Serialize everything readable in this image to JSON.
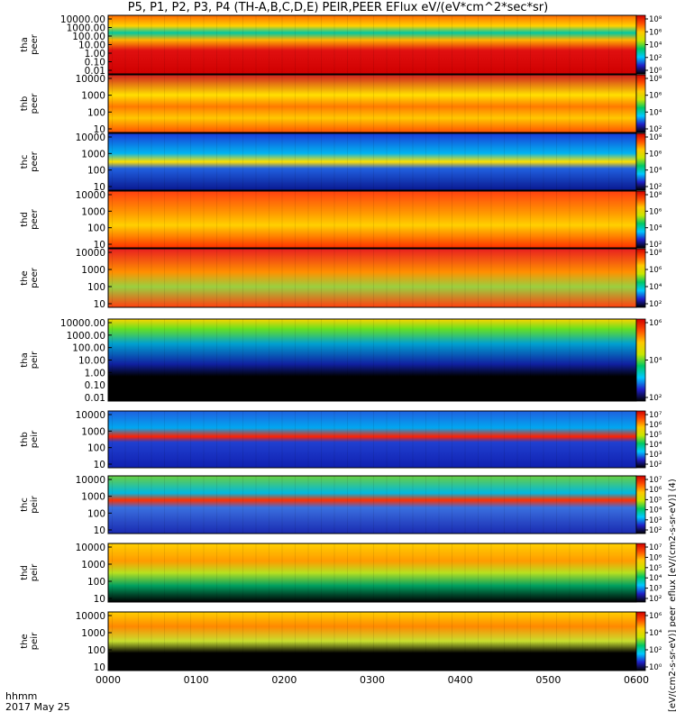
{
  "title": "P5, P1, P2, P3, P4 (TH-A,B,C,D,E) PEIR,PEER EFlux eV/(eV*cm^2*sec*sr)",
  "colorbar_units": "[eV/(cm2-s-sr-eV)] peer_eflux [eV/(cm2-s-sr-eV)] (4)",
  "footer": {
    "label1": "hhmm",
    "label2": "2017 May 25"
  },
  "colors": {
    "spectrum": [
      "#000000",
      "#2020c8",
      "#00c8ff",
      "#00c864",
      "#c8e600",
      "#ffc800",
      "#ff5000",
      "#d20000"
    ]
  },
  "chart_data": {
    "type": "heatmap",
    "x_ticks": [
      "0000",
      "0100",
      "0200",
      "0300",
      "0400",
      "0500",
      "0600"
    ],
    "panels": [
      {
        "ylabel": [
          "tha",
          "peer"
        ],
        "y_ticks": [
          "10000.00",
          "1000.00",
          "100.00",
          "10.00",
          "1.00",
          "0.10",
          "0.01"
        ],
        "colorbar": [
          "10^8",
          "10^6",
          "10^4",
          "10^2",
          "10^0"
        ]
      },
      {
        "ylabel": [
          "thb",
          "peer"
        ],
        "y_ticks": [
          "10000",
          "1000",
          "100",
          "10"
        ],
        "colorbar": [
          "10^8",
          "10^6",
          "10^4",
          "10^2"
        ]
      },
      {
        "ylabel": [
          "thc",
          "peer"
        ],
        "y_ticks": [
          "10000",
          "1000",
          "100",
          "10"
        ],
        "colorbar": [
          "10^8",
          "10^6",
          "10^4",
          "10^2"
        ]
      },
      {
        "ylabel": [
          "thd",
          "peer"
        ],
        "y_ticks": [
          "10000",
          "1000",
          "100",
          "10"
        ],
        "colorbar": [
          "10^8",
          "10^6",
          "10^4",
          "10^2"
        ]
      },
      {
        "ylabel": [
          "the",
          "peer"
        ],
        "y_ticks": [
          "10000",
          "1000",
          "100",
          "10"
        ],
        "colorbar": [
          "10^8",
          "10^6",
          "10^4",
          "10^2"
        ]
      },
      {
        "ylabel": [
          "tha",
          "peir"
        ],
        "y_ticks": [
          "10000.00",
          "1000.00",
          "100.00",
          "10.00",
          "1.00",
          "0.10",
          "0.01"
        ],
        "colorbar": [
          "10^6",
          "10^4",
          "10^2"
        ]
      },
      {
        "ylabel": [
          "thb",
          "peir"
        ],
        "y_ticks": [
          "10000",
          "1000",
          "100",
          "10"
        ],
        "colorbar": [
          "10^7",
          "10^6",
          "10^5",
          "10^4",
          "10^3",
          "10^2"
        ]
      },
      {
        "ylabel": [
          "thc",
          "peir"
        ],
        "y_ticks": [
          "10000",
          "1000",
          "100",
          "10"
        ],
        "colorbar": [
          "10^7",
          "10^6",
          "10^5",
          "10^4",
          "10^3",
          "10^2"
        ]
      },
      {
        "ylabel": [
          "thd",
          "peir"
        ],
        "y_ticks": [
          "10000",
          "1000",
          "100",
          "10"
        ],
        "colorbar": [
          "10^7",
          "10^6",
          "10^5",
          "10^4",
          "10^3",
          "10^2"
        ]
      },
      {
        "ylabel": [
          "the",
          "peir"
        ],
        "y_ticks": [
          "10000",
          "1000",
          "100",
          "10"
        ],
        "colorbar": [
          "10^6",
          "10^4",
          "10^2",
          "10^0"
        ]
      }
    ]
  }
}
